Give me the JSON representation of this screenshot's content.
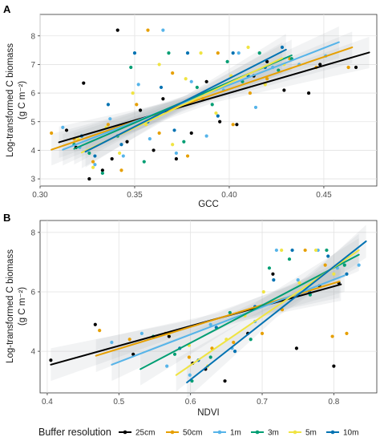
{
  "legend": {
    "title": "Buffer resolution",
    "items": [
      {
        "label": "25cm",
        "color": "#000000"
      },
      {
        "label": "50cm",
        "color": "#E69F00"
      },
      {
        "label": "1m",
        "color": "#56B4E9"
      },
      {
        "label": "3m",
        "color": "#009E73"
      },
      {
        "label": "5m",
        "color": "#F0E442"
      },
      {
        "label": "10m",
        "color": "#0072B2"
      }
    ],
    "position": "bottom"
  },
  "chart_data": [
    {
      "type": "scatter",
      "panel": "A",
      "xlabel": "GCC",
      "ylabel": "Log-transformed C biomass",
      "ylabel_unit": "(g C m⁻²)",
      "xlim": [
        0.3,
        0.478
      ],
      "ylim": [
        2.75,
        8.75
      ],
      "xticks": [
        0.3,
        0.35,
        0.4,
        0.45
      ],
      "xtick_labels": [
        "0.30",
        "0.35",
        "0.40",
        "0.45"
      ],
      "yticks": [
        3,
        4,
        5,
        6,
        7,
        8
      ],
      "grid": true,
      "series": [
        {
          "name": "25cm",
          "color": "#000000",
          "points": [
            [
              0.341,
              8.2
            ],
            [
              0.323,
              6.35
            ],
            [
              0.314,
              4.7
            ],
            [
              0.319,
              4.1
            ],
            [
              0.326,
              3.0
            ],
            [
              0.333,
              3.3
            ],
            [
              0.338,
              3.7
            ],
            [
              0.346,
              4.3
            ],
            [
              0.353,
              5.4
            ],
            [
              0.36,
              4.0
            ],
            [
              0.365,
              5.8
            ],
            [
              0.372,
              3.7
            ],
            [
              0.38,
              4.6
            ],
            [
              0.388,
              6.4
            ],
            [
              0.395,
              5.0
            ],
            [
              0.404,
              4.9
            ],
            [
              0.413,
              6.6
            ],
            [
              0.42,
              7.1
            ],
            [
              0.429,
              6.1
            ],
            [
              0.442,
              6.0
            ],
            [
              0.448,
              7.0
            ],
            [
              0.467,
              6.9
            ]
          ],
          "fit": {
            "x": [
              0.31,
              0.474
            ],
            "y": [
              4.28,
              7.42
            ]
          }
        },
        {
          "name": "50cm",
          "color": "#E69F00",
          "points": [
            [
              0.306,
              4.6
            ],
            [
              0.318,
              4.4
            ],
            [
              0.328,
              3.6
            ],
            [
              0.336,
              4.9
            ],
            [
              0.343,
              3.3
            ],
            [
              0.351,
              5.6
            ],
            [
              0.357,
              8.2
            ],
            [
              0.363,
              4.6
            ],
            [
              0.37,
              6.7
            ],
            [
              0.378,
              3.8
            ],
            [
              0.386,
              5.8
            ],
            [
              0.394,
              7.4
            ],
            [
              0.402,
              4.9
            ],
            [
              0.411,
              6.0
            ],
            [
              0.42,
              6.5
            ],
            [
              0.432,
              7.2
            ],
            [
              0.446,
              6.9
            ],
            [
              0.463,
              6.9
            ]
          ],
          "fit": {
            "x": [
              0.306,
              0.465
            ],
            "y": [
              4.02,
              7.6
            ]
          }
        },
        {
          "name": "1m",
          "color": "#56B4E9",
          "points": [
            [
              0.312,
              4.8
            ],
            [
              0.321,
              4.1
            ],
            [
              0.329,
              3.5
            ],
            [
              0.337,
              5.1
            ],
            [
              0.344,
              3.8
            ],
            [
              0.352,
              6.3
            ],
            [
              0.358,
              4.4
            ],
            [
              0.365,
              8.2
            ],
            [
              0.372,
              3.9
            ],
            [
              0.38,
              6.4
            ],
            [
              0.388,
              4.5
            ],
            [
              0.397,
              6.1
            ],
            [
              0.405,
              7.4
            ],
            [
              0.414,
              5.5
            ],
            [
              0.423,
              6.9
            ],
            [
              0.437,
              7.0
            ],
            [
              0.451,
              7.3
            ]
          ],
          "fit": {
            "x": [
              0.312,
              0.458
            ],
            "y": [
              4.02,
              7.78
            ]
          }
        },
        {
          "name": "3m",
          "color": "#009E73",
          "points": [
            [
              0.318,
              4.2
            ],
            [
              0.326,
              3.9
            ],
            [
              0.333,
              3.2
            ],
            [
              0.341,
              4.5
            ],
            [
              0.348,
              6.9
            ],
            [
              0.355,
              3.6
            ],
            [
              0.362,
              5.2
            ],
            [
              0.368,
              7.4
            ],
            [
              0.376,
              4.3
            ],
            [
              0.383,
              6.2
            ],
            [
              0.391,
              5.6
            ],
            [
              0.399,
              7.1
            ],
            [
              0.407,
              6.4
            ],
            [
              0.416,
              7.4
            ],
            [
              0.426,
              6.8
            ],
            [
              0.433,
              7.2
            ]
          ],
          "fit": {
            "x": [
              0.318,
              0.433
            ],
            "y": [
              4.05,
              7.32
            ]
          }
        },
        {
          "name": "5m",
          "color": "#F0E442",
          "points": [
            [
              0.32,
              4.4
            ],
            [
              0.328,
              3.4
            ],
            [
              0.335,
              4.8
            ],
            [
              0.342,
              3.9
            ],
            [
              0.349,
              6.0
            ],
            [
              0.356,
              4.9
            ],
            [
              0.363,
              7.0
            ],
            [
              0.37,
              4.2
            ],
            [
              0.377,
              6.5
            ],
            [
              0.385,
              7.4
            ],
            [
              0.393,
              5.3
            ],
            [
              0.401,
              6.6
            ],
            [
              0.41,
              7.6
            ],
            [
              0.419,
              6.3
            ],
            [
              0.429,
              7.0
            ]
          ],
          "fit": {
            "x": [
              0.322,
              0.428
            ],
            "y": [
              3.92,
              7.22
            ]
          }
        },
        {
          "name": "10m",
          "color": "#0072B2",
          "points": [
            [
              0.322,
              4.5
            ],
            [
              0.329,
              3.8
            ],
            [
              0.336,
              5.6
            ],
            [
              0.343,
              4.2
            ],
            [
              0.35,
              7.4
            ],
            [
              0.357,
              5.0
            ],
            [
              0.364,
              6.2
            ],
            [
              0.371,
              4.7
            ],
            [
              0.378,
              7.4
            ],
            [
              0.386,
              6.0
            ],
            [
              0.394,
              5.2
            ],
            [
              0.402,
              7.4
            ],
            [
              0.41,
              6.6
            ],
            [
              0.419,
              6.9
            ],
            [
              0.428,
              7.6
            ]
          ],
          "fit": {
            "x": [
              0.324,
              0.43
            ],
            "y": [
              3.95,
              7.52
            ]
          }
        }
      ]
    },
    {
      "type": "scatter",
      "panel": "B",
      "xlabel": "NDVI",
      "ylabel": "Log-transformed C biomass",
      "ylabel_unit": "(g C m⁻²)",
      "xlim": [
        0.39,
        0.86
      ],
      "ylim": [
        2.6,
        8.4
      ],
      "xticks": [
        0.4,
        0.5,
        0.6,
        0.7,
        0.8
      ],
      "xtick_labels": [
        "0.4",
        "0.5",
        "0.6",
        "0.7",
        "0.8"
      ],
      "yticks": [
        4,
        6,
        8
      ],
      "grid": true,
      "series": [
        {
          "name": "25cm",
          "color": "#000000",
          "points": [
            [
              0.405,
              3.7
            ],
            [
              0.467,
              4.9
            ],
            [
              0.52,
              3.9
            ],
            [
              0.57,
              4.5
            ],
            [
              0.603,
              3.6
            ],
            [
              0.621,
              3.4
            ],
            [
              0.648,
              3.0
            ],
            [
              0.68,
              4.6
            ],
            [
              0.715,
              6.6
            ],
            [
              0.748,
              4.1
            ],
            [
              0.78,
              6.2
            ],
            [
              0.8,
              3.5
            ],
            [
              0.807,
              6.3
            ]
          ],
          "fit": {
            "x": [
              0.405,
              0.81
            ],
            "y": [
              3.55,
              6.25
            ]
          }
        },
        {
          "name": "50cm",
          "color": "#E69F00",
          "points": [
            [
              0.473,
              4.7
            ],
            [
              0.515,
              4.4
            ],
            [
              0.565,
              4.6
            ],
            [
              0.598,
              3.8
            ],
            [
              0.63,
              4.1
            ],
            [
              0.66,
              4.3
            ],
            [
              0.7,
              4.6
            ],
            [
              0.728,
              5.4
            ],
            [
              0.76,
              7.4
            ],
            [
              0.788,
              6.9
            ],
            [
              0.798,
              4.5
            ],
            [
              0.818,
              4.6
            ]
          ],
          "fit": {
            "x": [
              0.468,
              0.808
            ],
            "y": [
              3.85,
              6.35
            ]
          }
        },
        {
          "name": "1m",
          "color": "#56B4E9",
          "points": [
            [
              0.49,
              4.3
            ],
            [
              0.532,
              4.6
            ],
            [
              0.567,
              3.5
            ],
            [
              0.599,
              3.2
            ],
            [
              0.628,
              4.9
            ],
            [
              0.658,
              4.1
            ],
            [
              0.69,
              5.0
            ],
            [
              0.72,
              7.4
            ],
            [
              0.75,
              6.4
            ],
            [
              0.778,
              7.4
            ],
            [
              0.805,
              6.8
            ],
            [
              0.835,
              6.9
            ]
          ],
          "fit": {
            "x": [
              0.49,
              0.815
            ],
            "y": [
              3.55,
              6.55
            ]
          }
        },
        {
          "name": "3m",
          "color": "#009E73",
          "points": [
            [
              0.548,
              4.5
            ],
            [
              0.578,
              3.9
            ],
            [
              0.602,
              3.0
            ],
            [
              0.628,
              3.8
            ],
            [
              0.655,
              5.3
            ],
            [
              0.684,
              4.4
            ],
            [
              0.71,
              6.8
            ],
            [
              0.738,
              7.1
            ],
            [
              0.767,
              5.9
            ],
            [
              0.79,
              7.4
            ],
            [
              0.815,
              6.9
            ]
          ],
          "fit": {
            "x": [
              0.53,
              0.835
            ],
            "y": [
              3.4,
              7.25
            ]
          }
        },
        {
          "name": "5m",
          "color": "#F0E442",
          "points": [
            [
              0.57,
              4.6
            ],
            [
              0.598,
              4.2
            ],
            [
              0.624,
              3.5
            ],
            [
              0.65,
              4.4
            ],
            [
              0.676,
              5.2
            ],
            [
              0.702,
              6.0
            ],
            [
              0.727,
              7.4
            ],
            [
              0.752,
              6.3
            ],
            [
              0.775,
              7.4
            ],
            [
              0.8,
              6.6
            ]
          ],
          "fit": {
            "x": [
              0.58,
              0.835
            ],
            "y": [
              3.2,
              7.4
            ]
          }
        },
        {
          "name": "10m",
          "color": "#0072B2",
          "points": [
            [
              0.585,
              4.1
            ],
            [
              0.611,
              3.7
            ],
            [
              0.636,
              4.8
            ],
            [
              0.662,
              4.0
            ],
            [
              0.69,
              5.5
            ],
            [
              0.716,
              6.4
            ],
            [
              0.742,
              7.4
            ],
            [
              0.766,
              6.0
            ],
            [
              0.792,
              7.2
            ],
            [
              0.818,
              6.6
            ]
          ],
          "fit": {
            "x": [
              0.595,
              0.845
            ],
            "y": [
              2.95,
              7.7
            ]
          }
        }
      ]
    }
  ]
}
